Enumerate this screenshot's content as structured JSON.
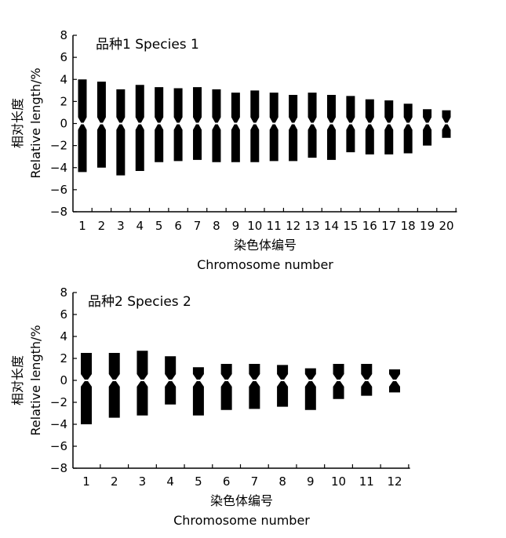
{
  "chart_data": [
    {
      "type": "bar",
      "title": "品种1  Species 1",
      "ylabel_cn": "相对长度",
      "ylabel_en": "Relative length/%",
      "xlabel_cn": "染色体编号",
      "xlabel_en": "Chromosome number",
      "ylim": [
        -8,
        8
      ],
      "yticks": [
        "8",
        "6",
        "4",
        "2",
        "0",
        "−2",
        "−4",
        "−6",
        "−8"
      ],
      "categories": [
        "1",
        "2",
        "3",
        "4",
        "5",
        "6",
        "7",
        "8",
        "9",
        "10",
        "11",
        "12",
        "13",
        "14",
        "15",
        "16",
        "17",
        "18",
        "19",
        "20"
      ],
      "series": [
        {
          "values": [
            4.0,
            3.8,
            3.1,
            3.5,
            3.3,
            3.2,
            3.3,
            3.1,
            2.8,
            3.0,
            2.8,
            2.6,
            2.8,
            2.6,
            2.5,
            2.2,
            2.1,
            1.8,
            1.3,
            1.2
          ]
        },
        {
          "values": [
            -4.4,
            -4.0,
            -4.7,
            -4.3,
            -3.5,
            -3.4,
            -3.3,
            -3.5,
            -3.5,
            -3.5,
            -3.4,
            -3.4,
            -3.1,
            -3.3,
            -2.6,
            -2.8,
            -2.8,
            -2.7,
            -2.0,
            -1.3
          ]
        }
      ],
      "color": "#000000"
    },
    {
      "type": "bar",
      "title": "品种2  Species 2",
      "ylabel_cn": "相对长度",
      "ylabel_en": "Relative length/%",
      "xlabel_cn": "染色体编号",
      "xlabel_en": "Chromosome number",
      "ylim": [
        -8,
        8
      ],
      "yticks": [
        "8",
        "6",
        "4",
        "2",
        "0",
        "−2",
        "−4",
        "−6",
        "−8"
      ],
      "categories": [
        "1",
        "2",
        "3",
        "4",
        "5",
        "6",
        "7",
        "8",
        "9",
        "10",
        "11",
        "12"
      ],
      "series": [
        {
          "values": [
            2.5,
            2.5,
            2.7,
            2.2,
            1.2,
            1.5,
            1.5,
            1.4,
            1.1,
            1.5,
            1.5,
            1.0
          ]
        },
        {
          "values": [
            -4.0,
            -3.4,
            -3.2,
            -2.2,
            -3.2,
            -2.7,
            -2.6,
            -2.4,
            -2.7,
            -1.7,
            -1.4,
            -1.1
          ]
        }
      ],
      "color": "#000000"
    }
  ]
}
